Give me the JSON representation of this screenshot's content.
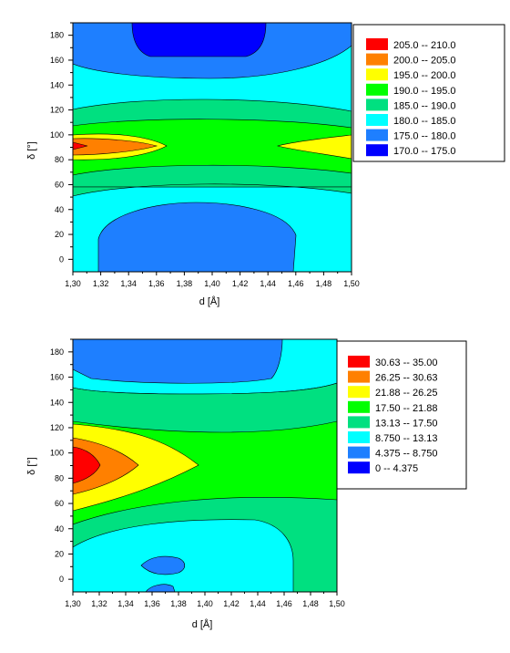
{
  "chart_data": [
    {
      "type": "contour",
      "xlabel": "d [Å]",
      "ylabel": "δ [°]",
      "xlim": [
        1.3,
        1.5
      ],
      "ylim": [
        -10,
        190
      ],
      "x_ticks": [
        "1,30",
        "1,32",
        "1,34",
        "1,36",
        "1,38",
        "1,40",
        "1,42",
        "1,44",
        "1,46",
        "1,48",
        "1,50"
      ],
      "y_ticks": [
        "0",
        "20",
        "40",
        "60",
        "80",
        "100",
        "120",
        "140",
        "160",
        "180"
      ],
      "legend": [
        {
          "label": "205.0  --  210.0",
          "color": "#ff0000"
        },
        {
          "label": "200.0  --  205.0",
          "color": "#ff8000"
        },
        {
          "label": "195.0  --  200.0",
          "color": "#ffff00"
        },
        {
          "label": "190.0  --  195.0",
          "color": "#00ff00"
        },
        {
          "label": "185.0  --  190.0",
          "color": "#00e080"
        },
        {
          "label": "180.0  --  185.0",
          "color": "#00ffff"
        },
        {
          "label": "175.0  --  180.0",
          "color": "#1e7fff"
        },
        {
          "label": "170.0  --  175.0",
          "color": "#0000ff"
        }
      ],
      "legend_placement": "right"
    },
    {
      "type": "contour",
      "xlabel": "d [Å]",
      "ylabel": "δ [°]",
      "xlim": [
        1.3,
        1.5
      ],
      "ylim": [
        -10,
        190
      ],
      "x_ticks": [
        "1,30",
        "1,32",
        "1,34",
        "1,36",
        "1,38",
        "1,40",
        "1,42",
        "1,44",
        "1,46",
        "1,48",
        "1,50"
      ],
      "y_ticks": [
        "0",
        "20",
        "40",
        "60",
        "80",
        "100",
        "120",
        "140",
        "160",
        "180"
      ],
      "legend": [
        {
          "label": "30.63  --  35.00",
          "color": "#ff0000"
        },
        {
          "label": "26.25  --  30.63",
          "color": "#ff8000"
        },
        {
          "label": "21.88  --  26.25",
          "color": "#ffff00"
        },
        {
          "label": "17.50  --  21.88",
          "color": "#00ff00"
        },
        {
          "label": "13.13  --  17.50",
          "color": "#00e080"
        },
        {
          "label": "8.750  --  13.13",
          "color": "#00ffff"
        },
        {
          "label": "4.375  --  8.750",
          "color": "#1e7fff"
        },
        {
          "label": "0  --  4.375",
          "color": "#0000ff"
        }
      ],
      "legend_placement": "right"
    }
  ]
}
